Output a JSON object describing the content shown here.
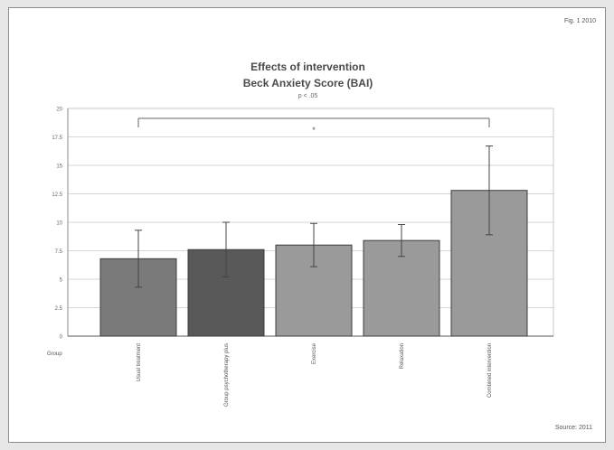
{
  "header": {
    "corner_text": "Fig. 1 2010"
  },
  "footer": {
    "corner_text": "Source: 2011"
  },
  "chart_data": {
    "type": "bar",
    "title": "Effects of intervention",
    "subtitle": "Beck Anxiety Score (BAI)",
    "note": "p < .05",
    "xlabel": "Group",
    "ylabel": "",
    "ylim": [
      0,
      20
    ],
    "yticks": [
      0,
      2.5,
      5,
      7.5,
      10,
      12.5,
      15,
      17.5,
      20
    ],
    "grid": true,
    "categories": [
      "Usual treatment",
      "Group psychotherapy plus",
      "Exercise",
      "Relaxation",
      "Combined intervention"
    ],
    "values": [
      6.8,
      7.6,
      8.0,
      8.4,
      12.8
    ],
    "errors": [
      2.5,
      2.4,
      1.9,
      1.4,
      3.9
    ],
    "bar_colors": [
      "#7a7a7a",
      "#595959",
      "#9a9a9a",
      "#9a9a9a",
      "#9a9a9a"
    ],
    "significance": {
      "from": 0,
      "to": 4,
      "label": "*"
    }
  }
}
